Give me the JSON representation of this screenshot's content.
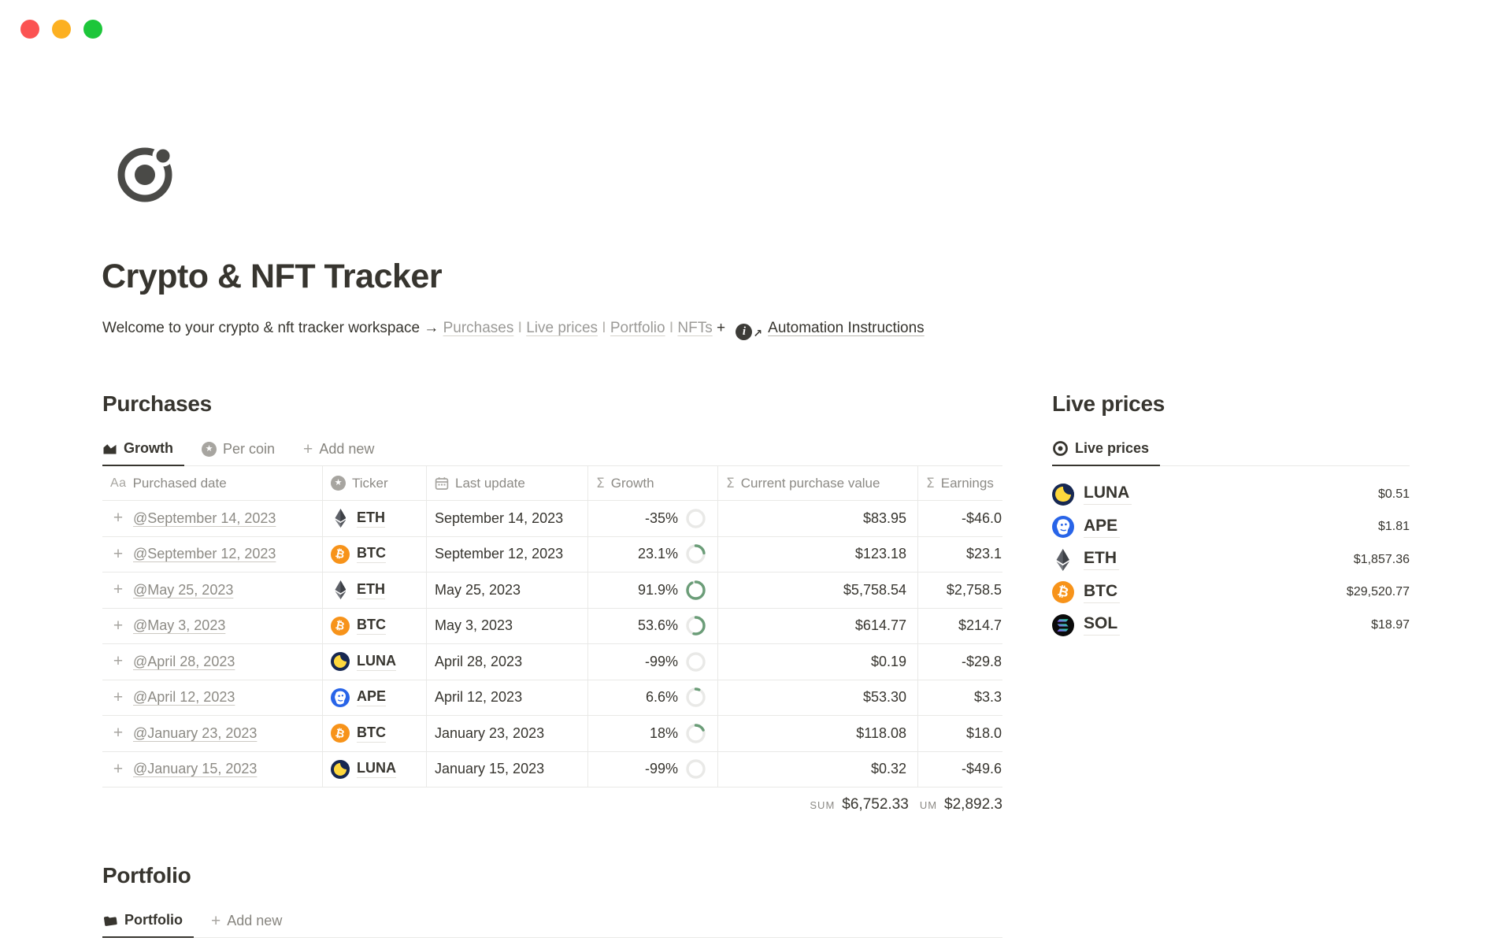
{
  "window": {
    "controls": [
      "close",
      "minimize",
      "zoom"
    ]
  },
  "page": {
    "icon": "orbit-circle-icon",
    "title": "Crypto & NFT Tracker",
    "welcome": {
      "text": "Welcome to your crypto & nft tracker workspace →",
      "links": [
        "Purchases",
        "Live prices",
        "Portfolio",
        "NFTs"
      ],
      "separator": "I",
      "plus": "+",
      "automation_icon": "info-link-icon",
      "automation_label": "Automation Instructions"
    }
  },
  "purchases": {
    "heading": "Purchases",
    "tabs": [
      {
        "label": "Growth",
        "icon": "area-chart-icon",
        "active": true
      },
      {
        "label": "Per coin",
        "icon": "star-circle-icon",
        "active": false
      },
      {
        "label": "Add new",
        "icon": "plus-icon",
        "active": false
      }
    ],
    "table": {
      "columns": [
        {
          "label": "Purchased date",
          "icon": "text-aa-icon"
        },
        {
          "label": "Ticker",
          "icon": "star-circle-icon"
        },
        {
          "label": "Last update",
          "icon": "calendar-icon"
        },
        {
          "label": "Growth",
          "icon": "sigma-icon"
        },
        {
          "label": "Current purchase value",
          "icon": "sigma-icon"
        },
        {
          "label": "Earnings",
          "icon": "sigma-icon"
        }
      ],
      "rows": [
        {
          "purchased_date": "@September 14, 2023",
          "ticker": "ETH",
          "last_update": "September 14, 2023",
          "growth": "-35%",
          "current_value": "$83.95",
          "earnings": "-$46.0"
        },
        {
          "purchased_date": "@September 12, 2023",
          "ticker": "BTC",
          "last_update": "September 12, 2023",
          "growth": "23.1%",
          "current_value": "$123.18",
          "earnings": "$23.1"
        },
        {
          "purchased_date": "@May 25, 2023",
          "ticker": "ETH",
          "last_update": "May 25, 2023",
          "growth": "91.9%",
          "current_value": "$5,758.54",
          "earnings": "$2,758.5"
        },
        {
          "purchased_date": "@May 3, 2023",
          "ticker": "BTC",
          "last_update": "May 3, 2023",
          "growth": "53.6%",
          "current_value": "$614.77",
          "earnings": "$214.7"
        },
        {
          "purchased_date": "@April 28, 2023",
          "ticker": "LUNA",
          "last_update": "April 28, 2023",
          "growth": "-99%",
          "current_value": "$0.19",
          "earnings": "-$29.8"
        },
        {
          "purchased_date": "@April 12, 2023",
          "ticker": "APE",
          "last_update": "April 12, 2023",
          "growth": "6.6%",
          "current_value": "$53.30",
          "earnings": "$3.3"
        },
        {
          "purchased_date": "@January 23, 2023",
          "ticker": "BTC",
          "last_update": "January 23, 2023",
          "growth": "18%",
          "current_value": "$118.08",
          "earnings": "$18.0"
        },
        {
          "purchased_date": "@January 15, 2023",
          "ticker": "LUNA",
          "last_update": "January 15, 2023",
          "growth": "-99%",
          "current_value": "$0.32",
          "earnings": "-$49.6"
        }
      ],
      "summary": {
        "sum_label": "SUM",
        "sum_value": "$6,752.33",
        "earnings_sum_label": "UM",
        "earnings_sum_value": "$2,892.3"
      }
    }
  },
  "live_prices": {
    "heading": "Live prices",
    "tabs": [
      {
        "label": "Live prices",
        "icon": "target-icon",
        "active": true
      }
    ],
    "rows": [
      {
        "ticker": "LUNA",
        "price": "$0.51"
      },
      {
        "ticker": "APE",
        "price": "$1.81"
      },
      {
        "ticker": "ETH",
        "price": "$1,857.36"
      },
      {
        "ticker": "BTC",
        "price": "$29,520.77"
      },
      {
        "ticker": "SOL",
        "price": "$18.97"
      }
    ]
  },
  "portfolio": {
    "heading": "Portfolio",
    "tabs": [
      {
        "label": "Portfolio",
        "icon": "folder-icon",
        "active": true
      },
      {
        "label": "Add new",
        "icon": "plus-icon",
        "active": false
      }
    ]
  },
  "colors": {
    "text_primary": "#37352f",
    "text_secondary": "#87857f",
    "divider": "#e9e9e7",
    "growth_ring_green": "#6b9d78",
    "btc_orange": "#f7931a",
    "ape_blue": "#2864e8",
    "luna_navy": "#172852",
    "luna_yellow": "#ffd83d",
    "eth_gray": "#55585e",
    "sol_black": "#0b0b0b",
    "sol_gradient_start": "#9945ff",
    "sol_gradient_end": "#14f195",
    "mac_close": "#fb5352",
    "mac_minimize": "#fcb021",
    "mac_zoom": "#1dc63a"
  }
}
